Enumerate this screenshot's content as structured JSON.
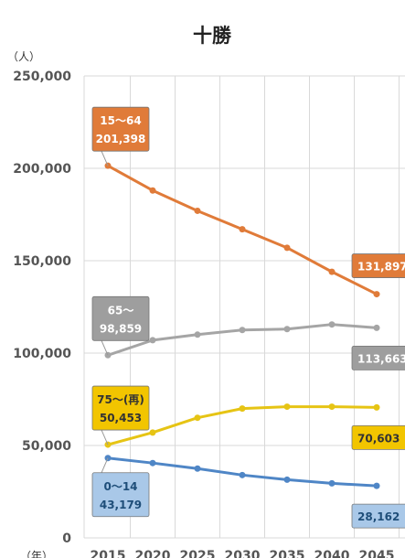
{
  "chart_data": {
    "type": "line",
    "title": "十勝",
    "ylabel": "（人）",
    "xlabel": "（年）",
    "x": [
      "2015",
      "2020",
      "2025",
      "2030",
      "2035",
      "2040",
      "2045"
    ],
    "ylim": [
      0,
      250000
    ],
    "yticks": [
      "0",
      "50,000",
      "100,000",
      "150,000",
      "200,000",
      "250,000"
    ],
    "grid": true,
    "series": [
      {
        "name": "15～64",
        "color": "#E07B39",
        "values": [
          201398,
          188000,
          177000,
          167000,
          157000,
          144000,
          131897
        ]
      },
      {
        "name": "65～",
        "color": "#A5A5A5",
        "values": [
          98859,
          107000,
          110000,
          112500,
          113000,
          115500,
          113663
        ]
      },
      {
        "name": "75～(再)",
        "color": "#E6C414",
        "values": [
          50453,
          57000,
          65000,
          70000,
          71000,
          71000,
          70603
        ]
      },
      {
        "name": "0～14",
        "color": "#4F86C6",
        "values": [
          43179,
          40500,
          37500,
          34000,
          31500,
          29500,
          28162
        ]
      }
    ],
    "annotations": [
      {
        "series": "15～64",
        "start_label": "15～64",
        "start_value": "201,398",
        "end_value": "131,897",
        "fill": "#E07B39",
        "text_color": "#ffffff"
      },
      {
        "series": "65～",
        "start_label": "65～",
        "start_value": "98,859",
        "end_value": "113,663",
        "fill": "#9E9E9E",
        "text_color": "#ffffff"
      },
      {
        "series": "75～(再)",
        "start_label": "75～(再)",
        "start_value": "50,453",
        "end_value": "70,603",
        "fill": "#F2C500",
        "text_color": "#333333"
      },
      {
        "series": "0～14",
        "start_label": "0～14",
        "start_value": "43,179",
        "end_value": "28,162",
        "fill": "#A9C8E8",
        "text_color": "#1F4E79"
      }
    ]
  }
}
